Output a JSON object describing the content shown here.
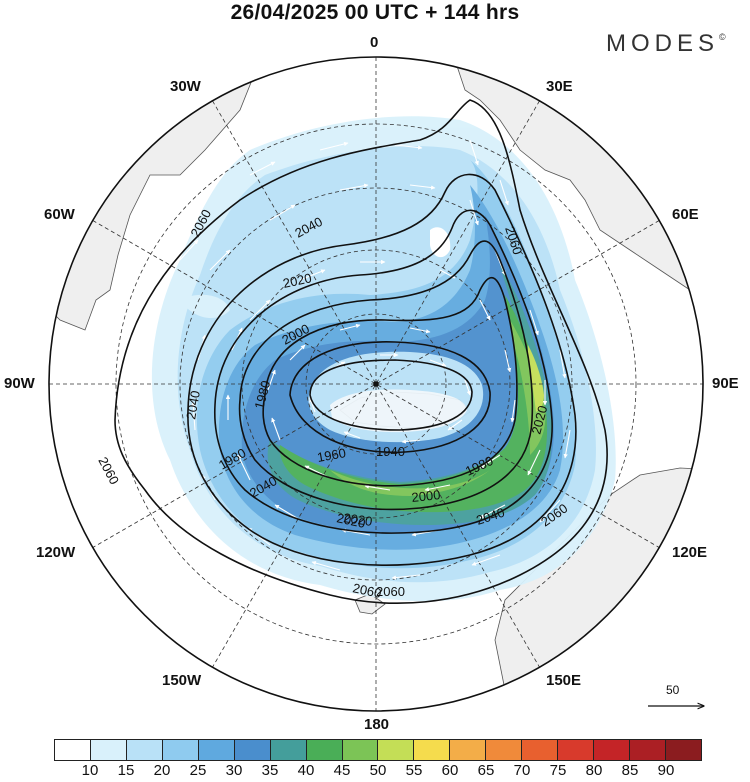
{
  "title": "26/04/2025  00 UTC  + 144 hrs",
  "brand": "MODES",
  "brand_mark": "©",
  "longitude_labels": {
    "n0": "0",
    "e30": "30E",
    "e60": "60E",
    "e90": "90E",
    "e120": "120E",
    "e150": "150E",
    "s180": "180",
    "w150": "150W",
    "w120": "120W",
    "w90": "90W",
    "w60": "60W",
    "w30": "30W"
  },
  "contour_labels": [
    "2060",
    "2040",
    "2020",
    "2000",
    "1980",
    "1960",
    "1940",
    "2060",
    "2060",
    "2040",
    "2020",
    "2000",
    "1980",
    "2020",
    "2040",
    "2060",
    "2060",
    "2040",
    "2020",
    "2060",
    "1980"
  ],
  "vector_reference_label": "50",
  "colorbar": {
    "tick_labels": [
      "10",
      "15",
      "20",
      "25",
      "30",
      "35",
      "40",
      "45",
      "50",
      "55",
      "60",
      "65",
      "70",
      "75",
      "80",
      "85",
      "90"
    ],
    "colors": [
      "#ffffff",
      "#d9f1fb",
      "#b9e1f7",
      "#8fcbef",
      "#5fa9df",
      "#4a8ecd",
      "#449e9b",
      "#4aae57",
      "#7cc456",
      "#c4de56",
      "#f5dc4d",
      "#f3ad48",
      "#f08a3a",
      "#e8602f",
      "#d83a2c",
      "#c42427",
      "#ab1f24",
      "#8b1c1f"
    ]
  },
  "shading_colors": {
    "light": "#d9f1fb",
    "lighter": "#b9e1f7",
    "mid": "#8fcbef",
    "deep": "#5fa9df",
    "deeper": "#4a8ecd",
    "teal": "#449e9b",
    "green": "#4aae57",
    "lightgreen": "#7cc456",
    "yellow": "#c4de56",
    "land": "#efefef",
    "coast": "#555555"
  }
}
